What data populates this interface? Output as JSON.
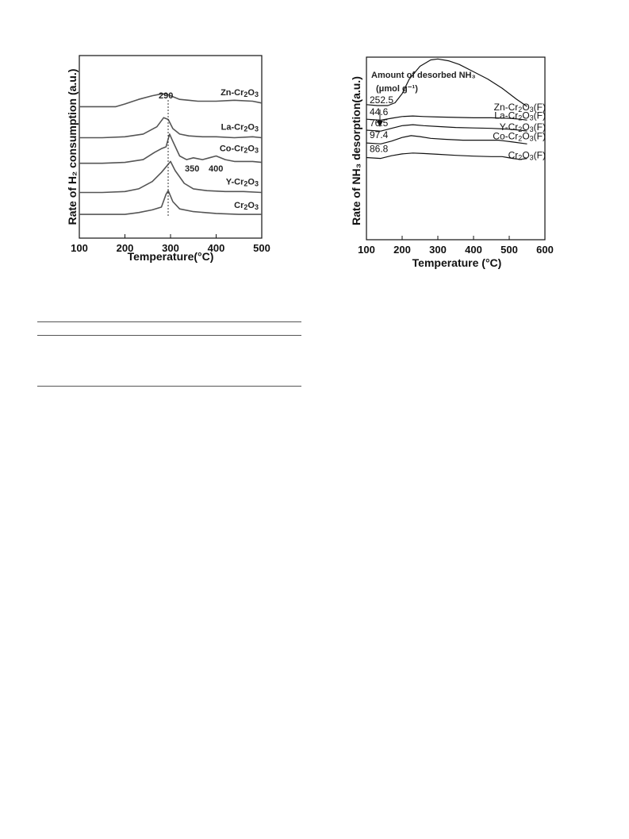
{
  "chart_data": [
    {
      "type": "line",
      "xlabel": "Temperature(°C)",
      "ylabel": "Rate of H₂ consumption (a.u.)",
      "xlim": [
        100,
        500
      ],
      "xticks": [
        "100",
        "200",
        "300",
        "400",
        "500"
      ],
      "annotations": [
        "290",
        "350",
        "400"
      ],
      "series": [
        {
          "name": "Zn-Cr2O3",
          "label_parts": [
            "Zn-Cr",
            "2",
            "O",
            "3"
          ],
          "x": [
            100,
            150,
            180,
            200,
            230,
            260,
            280,
            290,
            300,
            320,
            340,
            360,
            400,
            440,
            480,
            500
          ],
          "y": [
            0.72,
            0.72,
            0.72,
            0.735,
            0.76,
            0.78,
            0.79,
            0.79,
            0.78,
            0.76,
            0.755,
            0.75,
            0.75,
            0.755,
            0.75,
            0.74
          ]
        },
        {
          "name": "La-Cr2O3",
          "label_parts": [
            "La-Cr",
            "2",
            "O",
            "3"
          ],
          "x": [
            100,
            150,
            200,
            240,
            270,
            285,
            295,
            305,
            320,
            340,
            370,
            400,
            440,
            480,
            500
          ],
          "y": [
            0.55,
            0.55,
            0.555,
            0.57,
            0.61,
            0.66,
            0.65,
            0.6,
            0.57,
            0.56,
            0.555,
            0.555,
            0.55,
            0.555,
            0.55
          ]
        },
        {
          "name": "Co-Cr2O3",
          "label_parts": [
            "Co-Cr",
            "2",
            "O",
            "3"
          ],
          "x": [
            100,
            150,
            200,
            240,
            265,
            280,
            290,
            298,
            305,
            320,
            335,
            350,
            370,
            385,
            400,
            420,
            440,
            480,
            500
          ],
          "y": [
            0.41,
            0.41,
            0.415,
            0.43,
            0.47,
            0.49,
            0.5,
            0.57,
            0.53,
            0.45,
            0.43,
            0.44,
            0.43,
            0.44,
            0.45,
            0.43,
            0.42,
            0.42,
            0.415
          ]
        },
        {
          "name": "Y-Cr2O3",
          "label_parts": [
            "Y-Cr",
            "2",
            "O",
            "3"
          ],
          "x": [
            100,
            150,
            200,
            230,
            260,
            280,
            290,
            300,
            310,
            330,
            350,
            380,
            420,
            460,
            500
          ],
          "y": [
            0.25,
            0.25,
            0.255,
            0.27,
            0.31,
            0.36,
            0.39,
            0.42,
            0.37,
            0.3,
            0.27,
            0.26,
            0.255,
            0.255,
            0.25
          ]
        },
        {
          "name": "Cr2O3",
          "label_parts": [
            "Cr",
            "2",
            "O",
            "3"
          ],
          "x": [
            100,
            150,
            200,
            230,
            260,
            280,
            290,
            295,
            305,
            320,
            350,
            400,
            450,
            500
          ],
          "y": [
            0.13,
            0.13,
            0.13,
            0.14,
            0.155,
            0.17,
            0.24,
            0.26,
            0.2,
            0.16,
            0.145,
            0.135,
            0.13,
            0.13
          ]
        }
      ]
    },
    {
      "type": "line",
      "xlabel": "Temperature (°C)",
      "ylabel": "Rate of NH₃ desorption(a.u.)",
      "xlim": [
        100,
        600
      ],
      "xticks": [
        "100",
        "200",
        "300",
        "400",
        "500",
        "600"
      ],
      "annotation_title": "Amount of desorbed NH₃",
      "annotation_unit": "(μmol g⁻¹)",
      "series": [
        {
          "name": "Zn-Cr2O3(F)",
          "label_parts": [
            "Zn-Cr",
            "2",
            "O",
            "3",
            "(F)"
          ],
          "amount": "252.5",
          "x": [
            100,
            130,
            160,
            180,
            200,
            220,
            250,
            280,
            300,
            330,
            360,
            400,
            440,
            480,
            520,
            550
          ],
          "y": [
            0.74,
            0.735,
            0.735,
            0.75,
            0.8,
            0.88,
            0.95,
            0.985,
            0.99,
            0.98,
            0.96,
            0.92,
            0.88,
            0.83,
            0.77,
            0.73
          ]
        },
        {
          "name": "La-Cr2O3(F)",
          "label_parts": [
            "La-Cr",
            "2",
            "O",
            "3",
            "(F)"
          ],
          "amount": "44.6",
          "x": [
            100,
            140,
            170,
            200,
            230,
            260,
            300,
            350,
            400,
            450,
            500,
            530,
            550
          ],
          "y": [
            0.66,
            0.655,
            0.665,
            0.675,
            0.678,
            0.675,
            0.672,
            0.67,
            0.668,
            0.668,
            0.665,
            0.66,
            0.655
          ]
        },
        {
          "name": "Y-Cr2O3(F)",
          "label_parts": [
            "Y-Cr",
            "2",
            "O",
            "3",
            "(F)"
          ],
          "amount": "76.5",
          "x": [
            100,
            140,
            170,
            200,
            230,
            260,
            300,
            350,
            400,
            450,
            500,
            530,
            550
          ],
          "y": [
            0.6,
            0.595,
            0.61,
            0.625,
            0.63,
            0.625,
            0.62,
            0.615,
            0.612,
            0.61,
            0.605,
            0.6,
            0.595
          ]
        },
        {
          "name": "Co-Cr2O3(F)",
          "label_parts": [
            "Co-Cr",
            "2",
            "O",
            "3",
            "(F)"
          ],
          "amount": "97.4",
          "x": [
            100,
            140,
            170,
            200,
            225,
            250,
            280,
            320,
            370,
            420,
            470,
            510,
            550
          ],
          "y": [
            0.53,
            0.525,
            0.54,
            0.56,
            0.57,
            0.565,
            0.555,
            0.55,
            0.545,
            0.545,
            0.545,
            0.535,
            0.525
          ]
        },
        {
          "name": "Cr2O3(F)",
          "label_parts": [
            "Cr",
            "2",
            "O",
            "3",
            "(F)"
          ],
          "amount": "86.8",
          "x": [
            100,
            140,
            170,
            200,
            230,
            260,
            300,
            350,
            400,
            450,
            480,
            510,
            530,
            550
          ],
          "y": [
            0.45,
            0.445,
            0.46,
            0.47,
            0.475,
            0.472,
            0.468,
            0.462,
            0.458,
            0.455,
            0.455,
            0.445,
            0.44,
            0.445
          ]
        }
      ]
    }
  ]
}
